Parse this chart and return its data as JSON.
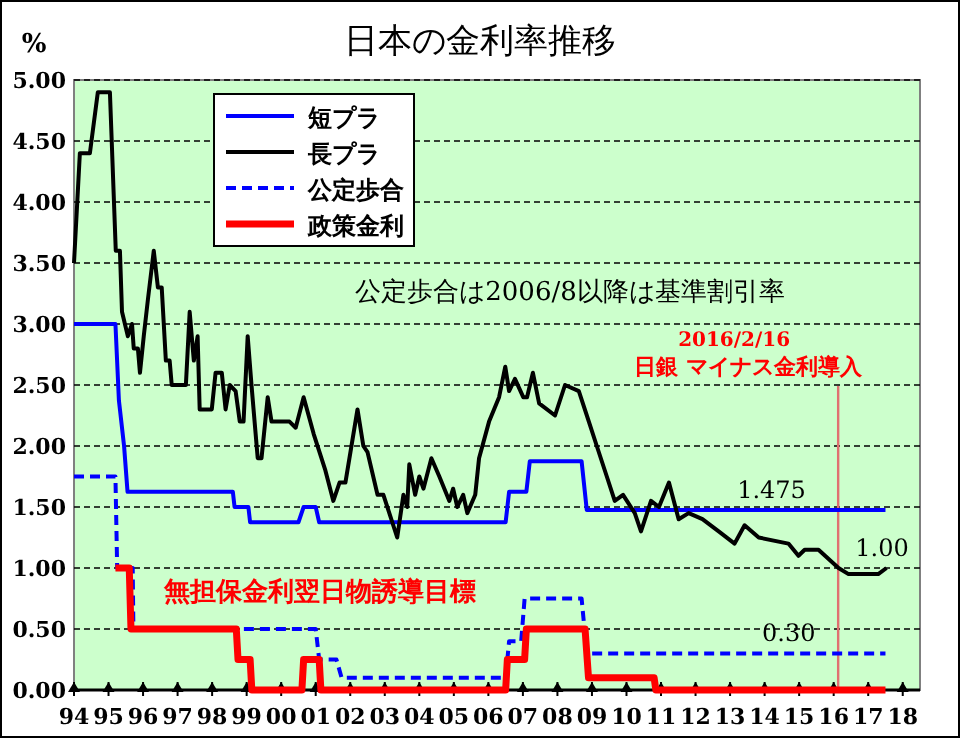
{
  "chart_data": {
    "type": "line",
    "title": "日本の金利率推移",
    "ylabel": "%",
    "xlim": [
      1994,
      2018.5
    ],
    "ylim": [
      0,
      5
    ],
    "xticks": [
      {
        "value": 1994,
        "label": "94"
      },
      {
        "value": 1995,
        "label": "95"
      },
      {
        "value": 1996,
        "label": "96"
      },
      {
        "value": 1997,
        "label": "97"
      },
      {
        "value": 1998,
        "label": "98"
      },
      {
        "value": 1999,
        "label": "99"
      },
      {
        "value": 2000,
        "label": "00"
      },
      {
        "value": 2001,
        "label": "01"
      },
      {
        "value": 2002,
        "label": "02"
      },
      {
        "value": 2003,
        "label": "03"
      },
      {
        "value": 2004,
        "label": "04"
      },
      {
        "value": 2005,
        "label": "05"
      },
      {
        "value": 2006,
        "label": "06"
      },
      {
        "value": 2007,
        "label": "07"
      },
      {
        "value": 2008,
        "label": "08"
      },
      {
        "value": 2009,
        "label": "09"
      },
      {
        "value": 2010,
        "label": "10"
      },
      {
        "value": 2011,
        "label": "11"
      },
      {
        "value": 2012,
        "label": "12"
      },
      {
        "value": 2013,
        "label": "13"
      },
      {
        "value": 2014,
        "label": "14"
      },
      {
        "value": 2015,
        "label": "15"
      },
      {
        "value": 2016,
        "label": "16"
      },
      {
        "value": 2017,
        "label": "17"
      },
      {
        "value": 2018,
        "label": "18"
      }
    ],
    "yticks": [
      {
        "value": 0,
        "label": "0.00"
      },
      {
        "value": 0.5,
        "label": "0.50"
      },
      {
        "value": 1,
        "label": "1.00"
      },
      {
        "value": 1.5,
        "label": "1.50"
      },
      {
        "value": 2,
        "label": "2.00"
      },
      {
        "value": 2.5,
        "label": "2.50"
      },
      {
        "value": 3,
        "label": "3.00"
      },
      {
        "value": 3.5,
        "label": "3.50"
      },
      {
        "value": 4,
        "label": "4.00"
      },
      {
        "value": 4.5,
        "label": "4.50"
      },
      {
        "value": 5,
        "label": "5.00"
      }
    ],
    "grid": "y",
    "legend": "top left",
    "series": [
      {
        "name": "短プラ",
        "color": "#0000ff",
        "line_style": "solid",
        "x": [
          1994,
          1995.2,
          1995.3,
          1995.45,
          1995.55,
          1998.6,
          1998.65,
          1999.05,
          1999.1,
          2000.5,
          2000.65,
          2001.0,
          2001.1,
          2006.5,
          2006.6,
          2007.1,
          2007.2,
          2008.7,
          2008.85,
          2017.5
        ],
        "values": [
          3.0,
          3.0,
          2.375,
          2.0,
          1.625,
          1.625,
          1.5,
          1.5,
          1.375,
          1.375,
          1.5,
          1.5,
          1.375,
          1.375,
          1.625,
          1.625,
          1.875,
          1.875,
          1.475,
          1.475
        ]
      },
      {
        "name": "長プラ",
        "color": "#000000",
        "line_style": "solid",
        "x": [
          1994.0,
          1994.17,
          1994.46,
          1994.69,
          1995.04,
          1995.21,
          1995.33,
          1995.39,
          1995.56,
          1995.68,
          1995.73,
          1995.85,
          1995.91,
          1996.02,
          1996.14,
          1996.31,
          1996.43,
          1996.54,
          1996.66,
          1996.77,
          1996.83,
          1997.24,
          1997.35,
          1997.47,
          1997.58,
          1997.64,
          1997.99,
          1998.1,
          1998.28,
          1998.39,
          1998.51,
          1998.68,
          1998.8,
          1998.91,
          1999.03,
          1999.14,
          1999.32,
          1999.43,
          1999.61,
          1999.72,
          2000.24,
          2000.42,
          2000.65,
          2000.94,
          2001.28,
          2001.51,
          2001.69,
          2001.86,
          2002.21,
          2002.38,
          2002.5,
          2002.79,
          2002.96,
          2003.36,
          2003.54,
          2003.65,
          2003.71,
          2003.88,
          2004.0,
          2004.12,
          2004.35,
          2004.58,
          2004.87,
          2004.98,
          2005.1,
          2005.27,
          2005.39,
          2005.62,
          2005.73,
          2006.02,
          2006.31,
          2006.49,
          2006.6,
          2006.77,
          2007.01,
          2007.12,
          2007.29,
          2007.47,
          2007.93,
          2008.22,
          2008.62,
          2008.91,
          2009.14,
          2009.43,
          2009.66,
          2009.9,
          2010.24,
          2010.42,
          2010.71,
          2010.94,
          2011.23,
          2011.51,
          2011.8,
          2012.2,
          2012.67,
          2013.13,
          2013.42,
          2013.83,
          2014.69,
          2014.98,
          2015.16,
          2015.56,
          2016.14,
          2016.43,
          2016.72,
          2017.29,
          2017.53
        ],
        "values": [
          3.5,
          4.4,
          4.4,
          4.9,
          4.9,
          3.6,
          3.6,
          3.1,
          2.9,
          3.0,
          2.8,
          2.8,
          2.6,
          2.9,
          3.2,
          3.6,
          3.3,
          3.3,
          2.7,
          2.7,
          2.5,
          2.5,
          3.1,
          2.7,
          2.9,
          2.3,
          2.3,
          2.6,
          2.6,
          2.3,
          2.5,
          2.45,
          2.2,
          2.2,
          2.9,
          2.5,
          1.9,
          1.9,
          2.4,
          2.2,
          2.2,
          2.15,
          2.4,
          2.1,
          1.8,
          1.55,
          1.7,
          1.7,
          2.3,
          2.0,
          1.95,
          1.6,
          1.6,
          1.25,
          1.6,
          1.5,
          1.85,
          1.6,
          1.75,
          1.65,
          1.9,
          1.75,
          1.55,
          1.65,
          1.5,
          1.6,
          1.45,
          1.6,
          1.9,
          2.2,
          2.4,
          2.65,
          2.45,
          2.55,
          2.4,
          2.4,
          2.6,
          2.35,
          2.25,
          2.5,
          2.45,
          2.2,
          2.0,
          1.75,
          1.55,
          1.6,
          1.45,
          1.3,
          1.55,
          1.5,
          1.7,
          1.4,
          1.45,
          1.4,
          1.3,
          1.2,
          1.35,
          1.25,
          1.2,
          1.1,
          1.15,
          1.15,
          1.0,
          0.95,
          0.95,
          0.95,
          1.0
        ]
      },
      {
        "name": "公定歩合",
        "color": "#0000ff",
        "line_style": "dashed",
        "x": [
          1994,
          1995.2,
          1995.25,
          1995.7,
          1995.72,
          2001.0,
          2001.1,
          2001.6,
          2001.75,
          2006.5,
          2006.6,
          2006.95,
          2007.05,
          2008.7,
          2008.85,
          2017.5
        ],
        "values": [
          1.75,
          1.75,
          1.0,
          1.0,
          0.5,
          0.5,
          0.25,
          0.25,
          0.1,
          0.1,
          0.4,
          0.4,
          0.75,
          0.75,
          0.3,
          0.3
        ]
      },
      {
        "name": "政策金利",
        "color": "#ff0000",
        "line_style": "solid",
        "x": [
          1995.2,
          1995.6,
          1995.65,
          1998.7,
          1998.75,
          1999.1,
          1999.15,
          2000.6,
          2000.65,
          2001.1,
          2001.15,
          2006.5,
          2006.55,
          2007.05,
          2007.1,
          2008.8,
          2008.9,
          2010.8,
          2010.85,
          2017.5
        ],
        "values": [
          1.0,
          1.0,
          0.5,
          0.5,
          0.25,
          0.25,
          0,
          0,
          0.25,
          0.25,
          0,
          0,
          0.25,
          0.25,
          0.5,
          0.5,
          0.1,
          0.1,
          0,
          0
        ]
      }
    ],
    "ref_lines": [
      {
        "axis": "x",
        "value": 2016.13,
        "label": "2016/2/16",
        "color": "#e07070"
      }
    ],
    "annotations": [
      {
        "text": "1.475",
        "x": 2014.2,
        "y": 1.475
      },
      {
        "text": "1.00",
        "x": 2017.4,
        "y": 1.0
      },
      {
        "text": "0.30",
        "x": 2014.7,
        "y": 0.3
      },
      "公定歩合は2006/8以降は基準割引率",
      "無担保金利翌日物誘導目標",
      "日銀 マイナス金利導入"
    ]
  }
}
